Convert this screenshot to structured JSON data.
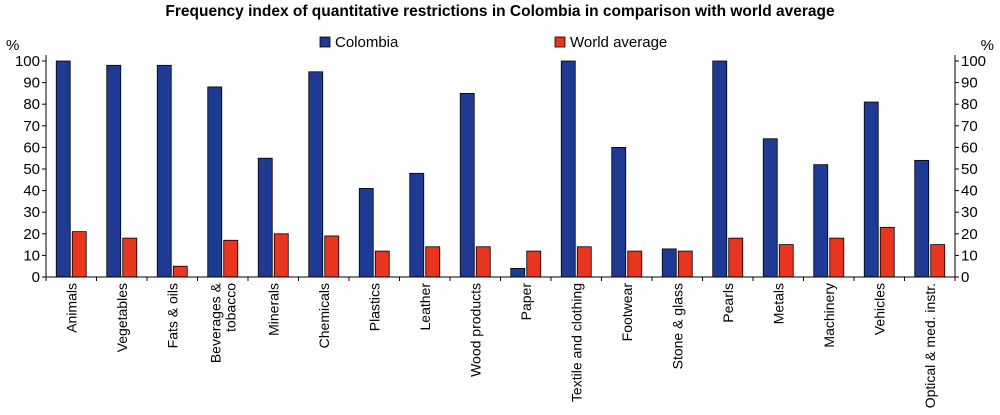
{
  "chart_data": {
    "type": "bar",
    "title": "Frequency index of quantitative restrictions in Colombia in comparison with world average",
    "ylabel_left": "%",
    "ylabel_right": "%",
    "ylim": [
      0,
      100
    ],
    "yticks": [
      0,
      10,
      20,
      30,
      40,
      50,
      60,
      70,
      80,
      90,
      100
    ],
    "grid": false,
    "legend_position": "top-center",
    "categories": [
      [
        "Animals"
      ],
      [
        "Vegetables"
      ],
      [
        "Fats & oils"
      ],
      [
        "Beverages &",
        "tobacco"
      ],
      [
        "Minerals"
      ],
      [
        "Chemicals"
      ],
      [
        "Plastics"
      ],
      [
        "Leather"
      ],
      [
        "Wood products"
      ],
      [
        "Paper"
      ],
      [
        "Textile and clothing"
      ],
      [
        "Footwear"
      ],
      [
        "Stone & glass"
      ],
      [
        "Pearls"
      ],
      [
        "Metals"
      ],
      [
        "Machinery"
      ],
      [
        "Vehicles"
      ],
      [
        "Optical & med. instr."
      ]
    ],
    "series": [
      {
        "name": "Colombia",
        "color": "#1f3a93",
        "values": [
          100,
          98,
          98,
          88,
          55,
          95,
          41,
          48,
          85,
          4,
          100,
          60,
          13,
          100,
          64,
          52,
          81,
          54
        ]
      },
      {
        "name": "World average",
        "color": "#e8351f",
        "values": [
          21,
          18,
          5,
          17,
          20,
          19,
          12,
          14,
          14,
          12,
          14,
          12,
          12,
          18,
          15,
          18,
          23,
          15
        ]
      }
    ]
  }
}
